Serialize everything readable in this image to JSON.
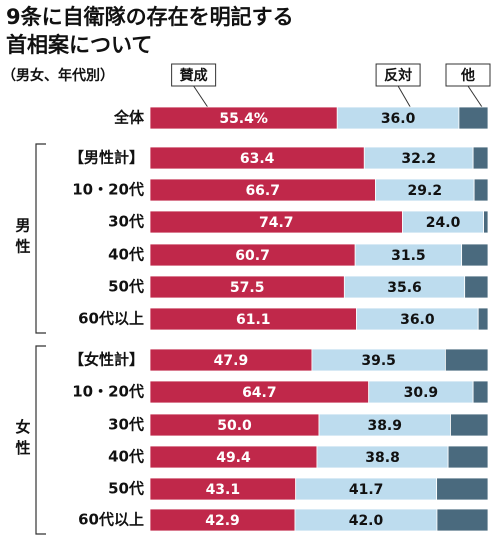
{
  "chart_data": {
    "type": "stacked-bar",
    "title": [
      "9条に自衛隊の存在を明記する",
      "首相案について"
    ],
    "subtitle": "（男女、年代別）",
    "groups": [
      {
        "label": "男性",
        "start": 1,
        "end": 6
      },
      {
        "label": "女性",
        "start": 7,
        "end": 12
      }
    ],
    "categories": [
      "全体",
      "【男性計】",
      "10・20代",
      "30代",
      "40代",
      "50代",
      "60代以上",
      "【女性計】",
      "10・20代",
      "30代",
      "40代",
      "50代",
      "60代以上"
    ],
    "xlim": [
      0,
      100
    ],
    "series": [
      {
        "name": "賛成",
        "color": "#c0284a",
        "values": [
          55.4,
          63.4,
          66.7,
          74.7,
          60.7,
          57.5,
          61.1,
          47.9,
          64.7,
          50.0,
          49.4,
          43.1,
          42.9
        ],
        "value_labels": [
          "55.4%",
          "63.4",
          "66.7",
          "74.7",
          "60.7",
          "57.5",
          "61.1",
          "47.9",
          "64.7",
          "50.0",
          "49.4",
          "43.1",
          "42.9"
        ]
      },
      {
        "name": "反対",
        "color": "#bddcee",
        "values": [
          36.0,
          32.2,
          29.2,
          24.0,
          31.5,
          35.6,
          36.0,
          39.5,
          30.9,
          38.9,
          38.8,
          41.7,
          42.0
        ],
        "value_labels": [
          "36.0",
          "32.2",
          "29.2",
          "24.0",
          "31.5",
          "35.6",
          "36.0",
          "39.5",
          "30.9",
          "38.9",
          "38.8",
          "41.7",
          "42.0"
        ]
      },
      {
        "name": "他",
        "color": "#4a6a7e",
        "values": [
          8.6,
          4.4,
          4.1,
          1.3,
          7.8,
          6.9,
          2.9,
          12.6,
          4.4,
          11.1,
          11.8,
          15.2,
          15.1
        ]
      }
    ]
  }
}
